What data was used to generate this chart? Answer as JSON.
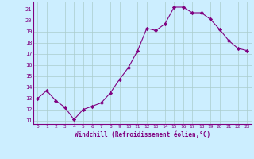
{
  "x": [
    0,
    1,
    2,
    3,
    4,
    5,
    6,
    7,
    8,
    9,
    10,
    11,
    12,
    13,
    14,
    15,
    16,
    17,
    18,
    19,
    20,
    21,
    22,
    23
  ],
  "y": [
    13.0,
    13.7,
    12.8,
    12.2,
    11.1,
    12.0,
    12.3,
    12.6,
    13.5,
    14.7,
    15.8,
    17.3,
    19.3,
    19.1,
    19.7,
    21.2,
    21.2,
    20.7,
    20.7,
    20.1,
    19.2,
    18.2,
    17.5,
    17.3
  ],
  "line_color": "#800080",
  "marker": "D",
  "marker_size": 2.2,
  "bg_color": "#cceeff",
  "grid_color": "#aacccc",
  "xlabel": "Windchill (Refroidissement éolien,°C)",
  "ylabel_ticks": [
    11,
    12,
    13,
    14,
    15,
    16,
    17,
    18,
    19,
    20,
    21
  ],
  "ylim": [
    10.7,
    21.7
  ],
  "xlim": [
    -0.5,
    23.5
  ],
  "tick_color": "#800080",
  "xlabel_color": "#800080",
  "spine_color": "#800080"
}
